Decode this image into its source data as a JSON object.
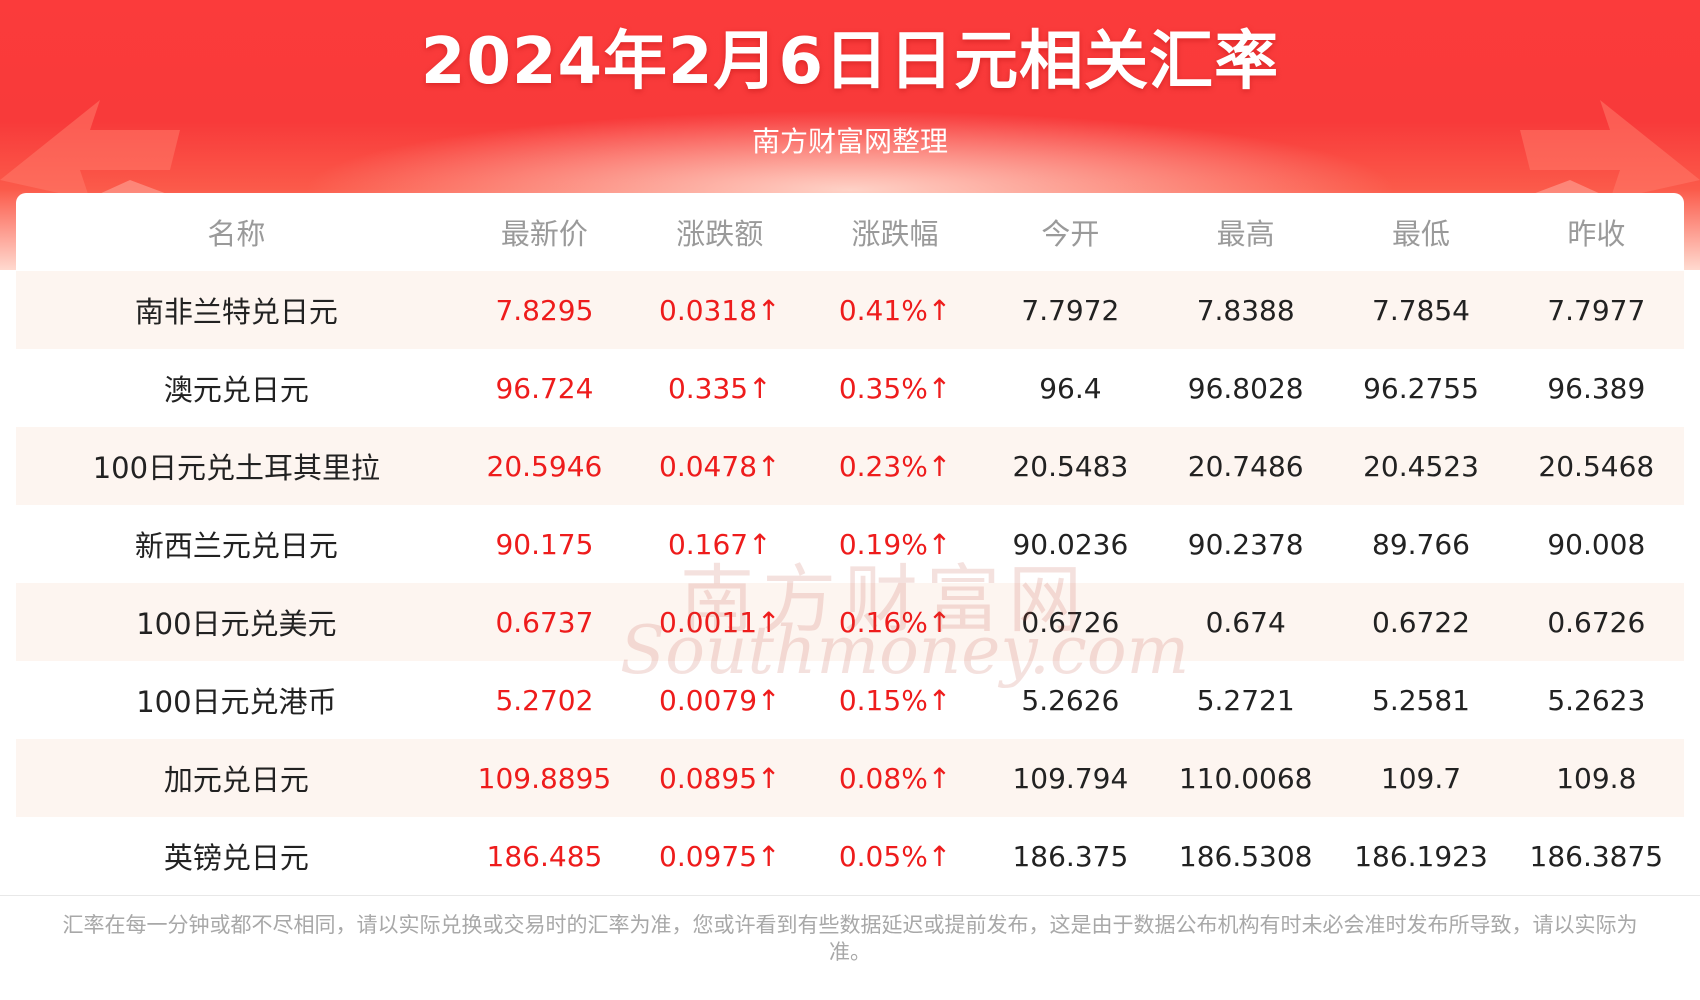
{
  "header": {
    "title": "2024年2月6日日元相关汇率",
    "subtitle": "南方财富网整理"
  },
  "table": {
    "columns": [
      "名称",
      "最新价",
      "涨跌额",
      "涨跌幅",
      "今开",
      "最高",
      "最低",
      "昨收"
    ],
    "rows": [
      {
        "name": "南非兰特兑日元",
        "latest": "7.8295",
        "change": "0.0318↑",
        "change_pct": "0.41%↑",
        "open": "7.7972",
        "high": "7.8388",
        "low": "7.7854",
        "prev_close": "7.7977"
      },
      {
        "name": "澳元兑日元",
        "latest": "96.724",
        "change": "0.335↑",
        "change_pct": "0.35%↑",
        "open": "96.4",
        "high": "96.8028",
        "low": "96.2755",
        "prev_close": "96.389"
      },
      {
        "name": "100日元兑土耳其里拉",
        "latest": "20.5946",
        "change": "0.0478↑",
        "change_pct": "0.23%↑",
        "open": "20.5483",
        "high": "20.7486",
        "low": "20.4523",
        "prev_close": "20.5468"
      },
      {
        "name": "新西兰元兑日元",
        "latest": "90.175",
        "change": "0.167↑",
        "change_pct": "0.19%↑",
        "open": "90.0236",
        "high": "90.2378",
        "low": "89.766",
        "prev_close": "90.008"
      },
      {
        "name": "100日元兑美元",
        "latest": "0.6737",
        "change": "0.0011↑",
        "change_pct": "0.16%↑",
        "open": "0.6726",
        "high": "0.674",
        "low": "0.6722",
        "prev_close": "0.6726"
      },
      {
        "name": "100日元兑港币",
        "latest": "5.2702",
        "change": "0.0079↑",
        "change_pct": "0.15%↑",
        "open": "5.2626",
        "high": "5.2721",
        "low": "5.2581",
        "prev_close": "5.2623"
      },
      {
        "name": "加元兑日元",
        "latest": "109.8895",
        "change": "0.0895↑",
        "change_pct": "0.08%↑",
        "open": "109.794",
        "high": "110.0068",
        "low": "109.7",
        "prev_close": "109.8"
      },
      {
        "name": "英镑兑日元",
        "latest": "186.485",
        "change": "0.0975↑",
        "change_pct": "0.05%↑",
        "open": "186.375",
        "high": "186.5308",
        "low": "186.1923",
        "prev_close": "186.3875"
      }
    ]
  },
  "watermark": {
    "cn": "南方财富网",
    "en": "Southmoney.com"
  },
  "footnote": "汇率在每一分钟或都不尽相同，请以实际兑换或交易时的汇率为准，您或许看到有些数据延迟或提前发布，这是由于数据公布机构有时未必会准时发布所导致，请以实际为准。",
  "colors": {
    "header_red": "#fb3b3b",
    "up_red": "#ee1c1c",
    "row_stripe": "#fdf5f0",
    "header_text_gray": "#9a9a9a"
  }
}
